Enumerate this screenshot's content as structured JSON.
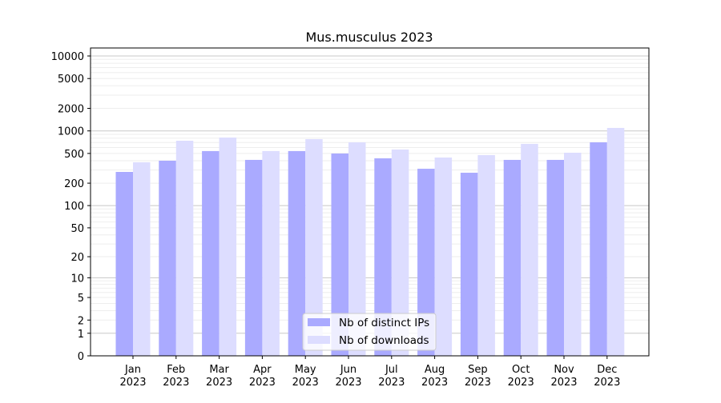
{
  "chart_data": {
    "type": "bar",
    "title": "Mus.musculus 2023",
    "xlabel": "",
    "ylabel": "",
    "yscale": "log(1+x)",
    "ylim": [
      0,
      10000
    ],
    "yticks": [
      0,
      1,
      2,
      5,
      10,
      20,
      50,
      100,
      200,
      500,
      1000,
      2000,
      5000,
      10000
    ],
    "grid": true,
    "legend_position": "bottom-center",
    "categories": [
      "Jan\n2023",
      "Feb\n2023",
      "Mar\n2023",
      "Apr\n2023",
      "May\n2023",
      "Jun\n2023",
      "Jul\n2023",
      "Aug\n2023",
      "Sep\n2023",
      "Oct\n2023",
      "Nov\n2023",
      "Dec\n2023"
    ],
    "series": [
      {
        "name": "Nb of distinct IPs",
        "color": "#aaaaff",
        "values": [
          283,
          400,
          538,
          410,
          538,
          499,
          430,
          312,
          276,
          410,
          410,
          704
        ]
      },
      {
        "name": "Nb of downloads",
        "color": "#ddddff",
        "values": [
          381,
          739,
          816,
          538,
          777,
          704,
          564,
          441,
          475,
          671,
          511,
          1096
        ]
      }
    ]
  }
}
